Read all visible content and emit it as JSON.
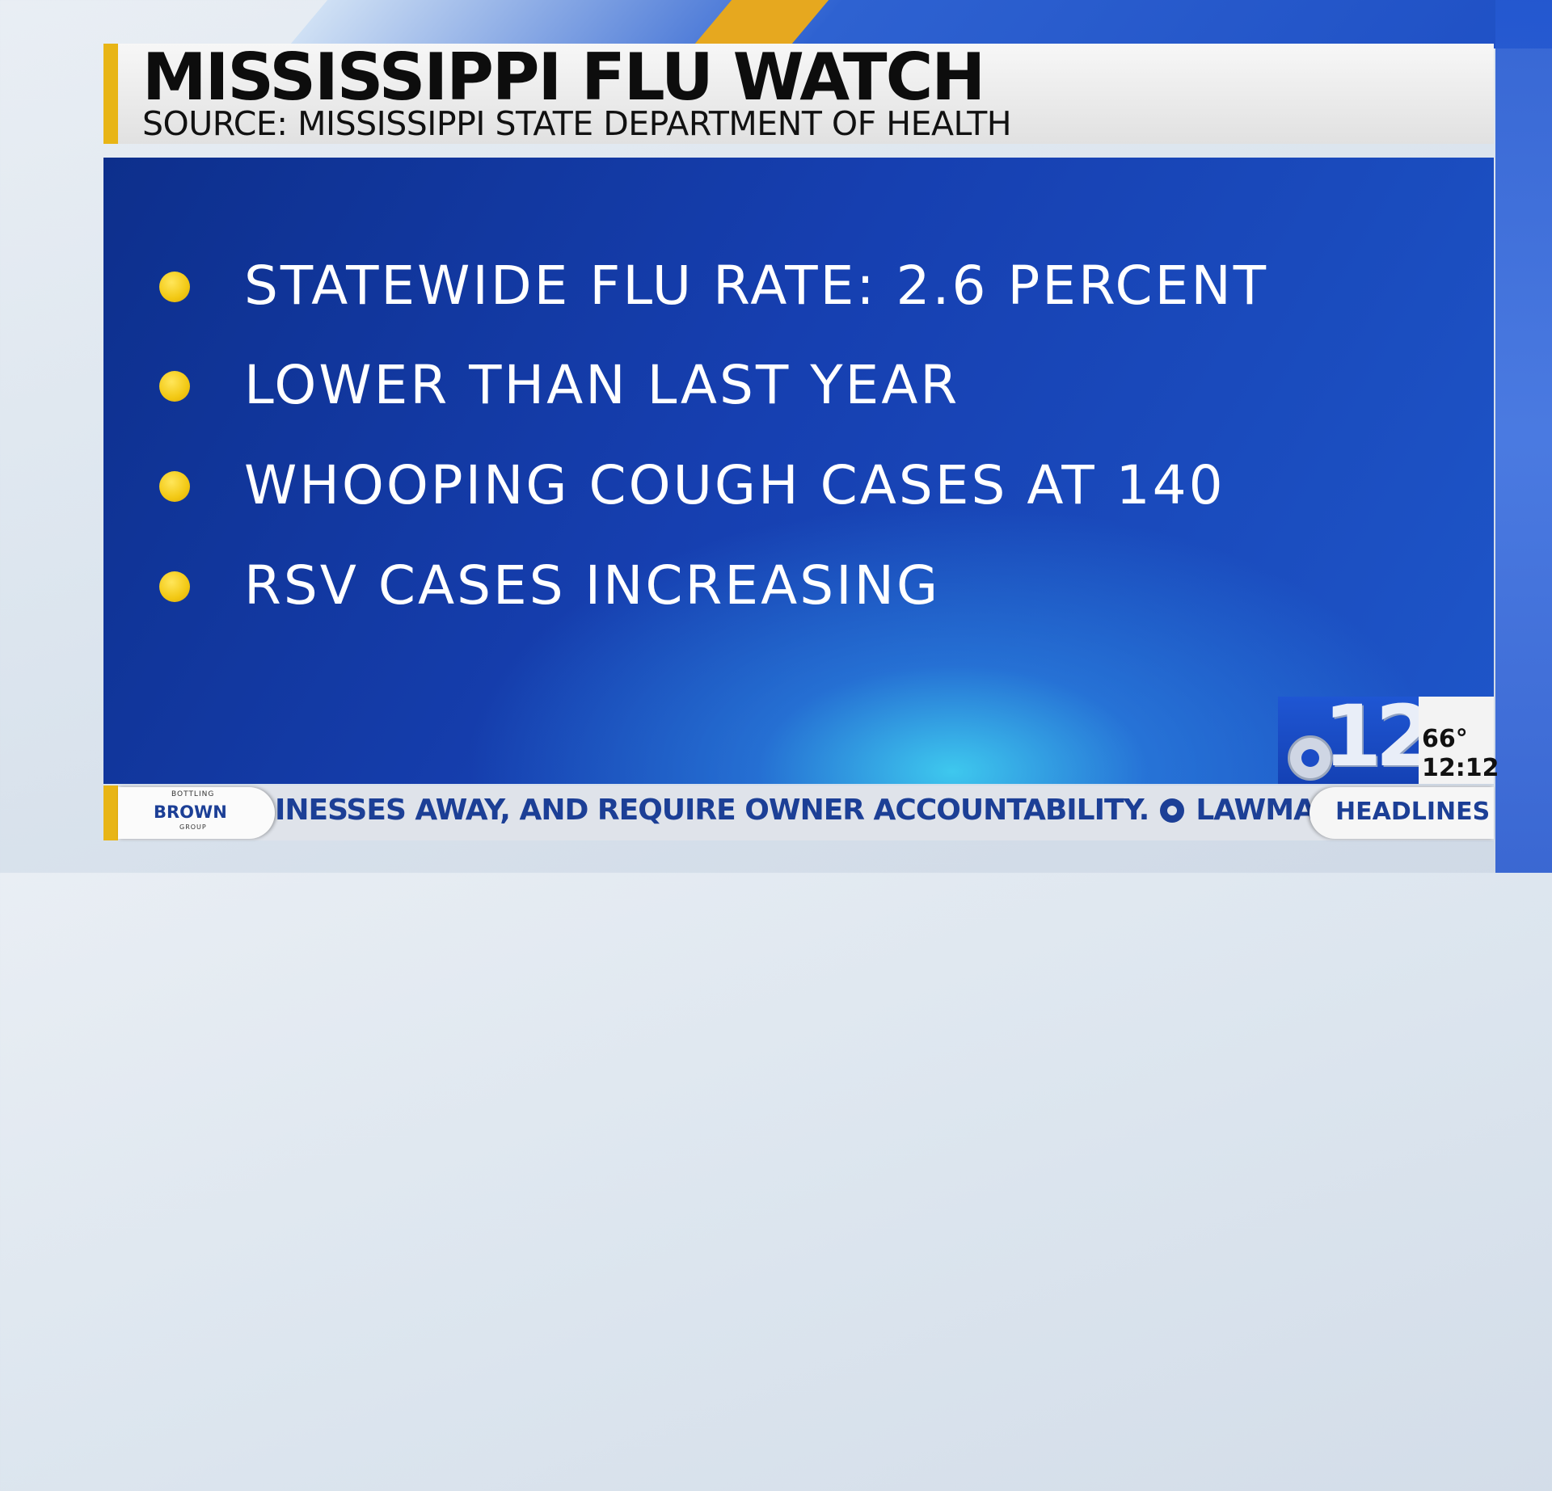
{
  "title": "MISSISSIPPI FLU WATCH",
  "subtitle": "SOURCE: MISSISSIPPI STATE DEPARTMENT OF HEALTH",
  "bullets": [
    "STATEWIDE FLU RATE: 2.6 PERCENT",
    "LOWER THAN LAST YEAR",
    "WHOOPING COUGH CASES AT 140",
    "RSV CASES INCREASING"
  ],
  "station_logo": {
    "number": "12",
    "icon": "cbs-eye-icon"
  },
  "weather": {
    "temperature": "66°",
    "time": "12:12"
  },
  "sponsor": {
    "top": "BOTTLING",
    "name": "BROWN",
    "bottom": "GROUP"
  },
  "ticker": {
    "text_1": "INESSES AWAY, AND REQUIRE OWNER ACCOUNTABILITY.",
    "text_2": "LAWMAKERS"
  },
  "headlines_label": "HEADLINES",
  "colors": {
    "accent_gold": "#e8b516",
    "panel_blue": "#163fb0",
    "ticker_text": "#1c3f96"
  }
}
